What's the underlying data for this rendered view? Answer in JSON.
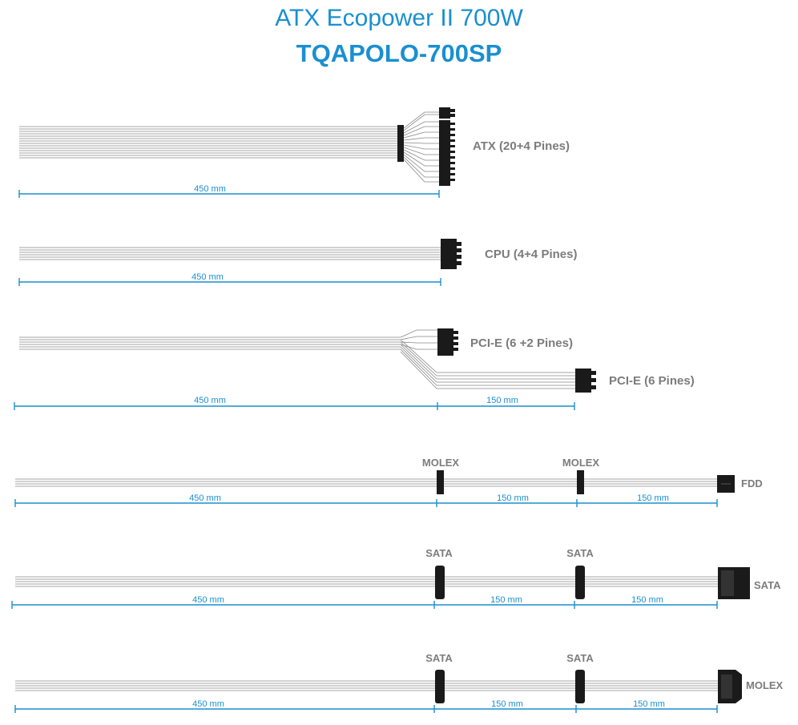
{
  "header": {
    "title": "ATX Ecopower II 700W",
    "model": "TQAPOLO-700SP"
  },
  "cables": {
    "atx": {
      "label": "ATX (20+4 Pines)",
      "length": "450 mm"
    },
    "cpu": {
      "label": "CPU (4+4 Pines)",
      "length": "450 mm"
    },
    "pcie": {
      "label1": "PCI-E (6 +2 Pines)",
      "label2": "PCI-E (6 Pines)",
      "length1": "450 mm",
      "length2": "150 mm"
    },
    "molex": {
      "conn1": "MOLEX",
      "conn2": "MOLEX",
      "end": "FDD",
      "length1": "450 mm",
      "length2": "150 mm",
      "length3": "150 mm"
    },
    "sata1": {
      "conn1": "SATA",
      "conn2": "SATA",
      "end": "SATA",
      "length1": "450 mm",
      "length2": "150 mm",
      "length3": "150 mm"
    },
    "sata2": {
      "conn1": "SATA",
      "conn2": "SATA",
      "end": "MOLEX",
      "length1": "450 mm",
      "length2": "150 mm",
      "length3": "150 mm"
    }
  },
  "colors": {
    "accent": "#1a8fd0",
    "label": "#7c7c7c",
    "connector": "#1a1a1a",
    "wire": "#888888"
  }
}
